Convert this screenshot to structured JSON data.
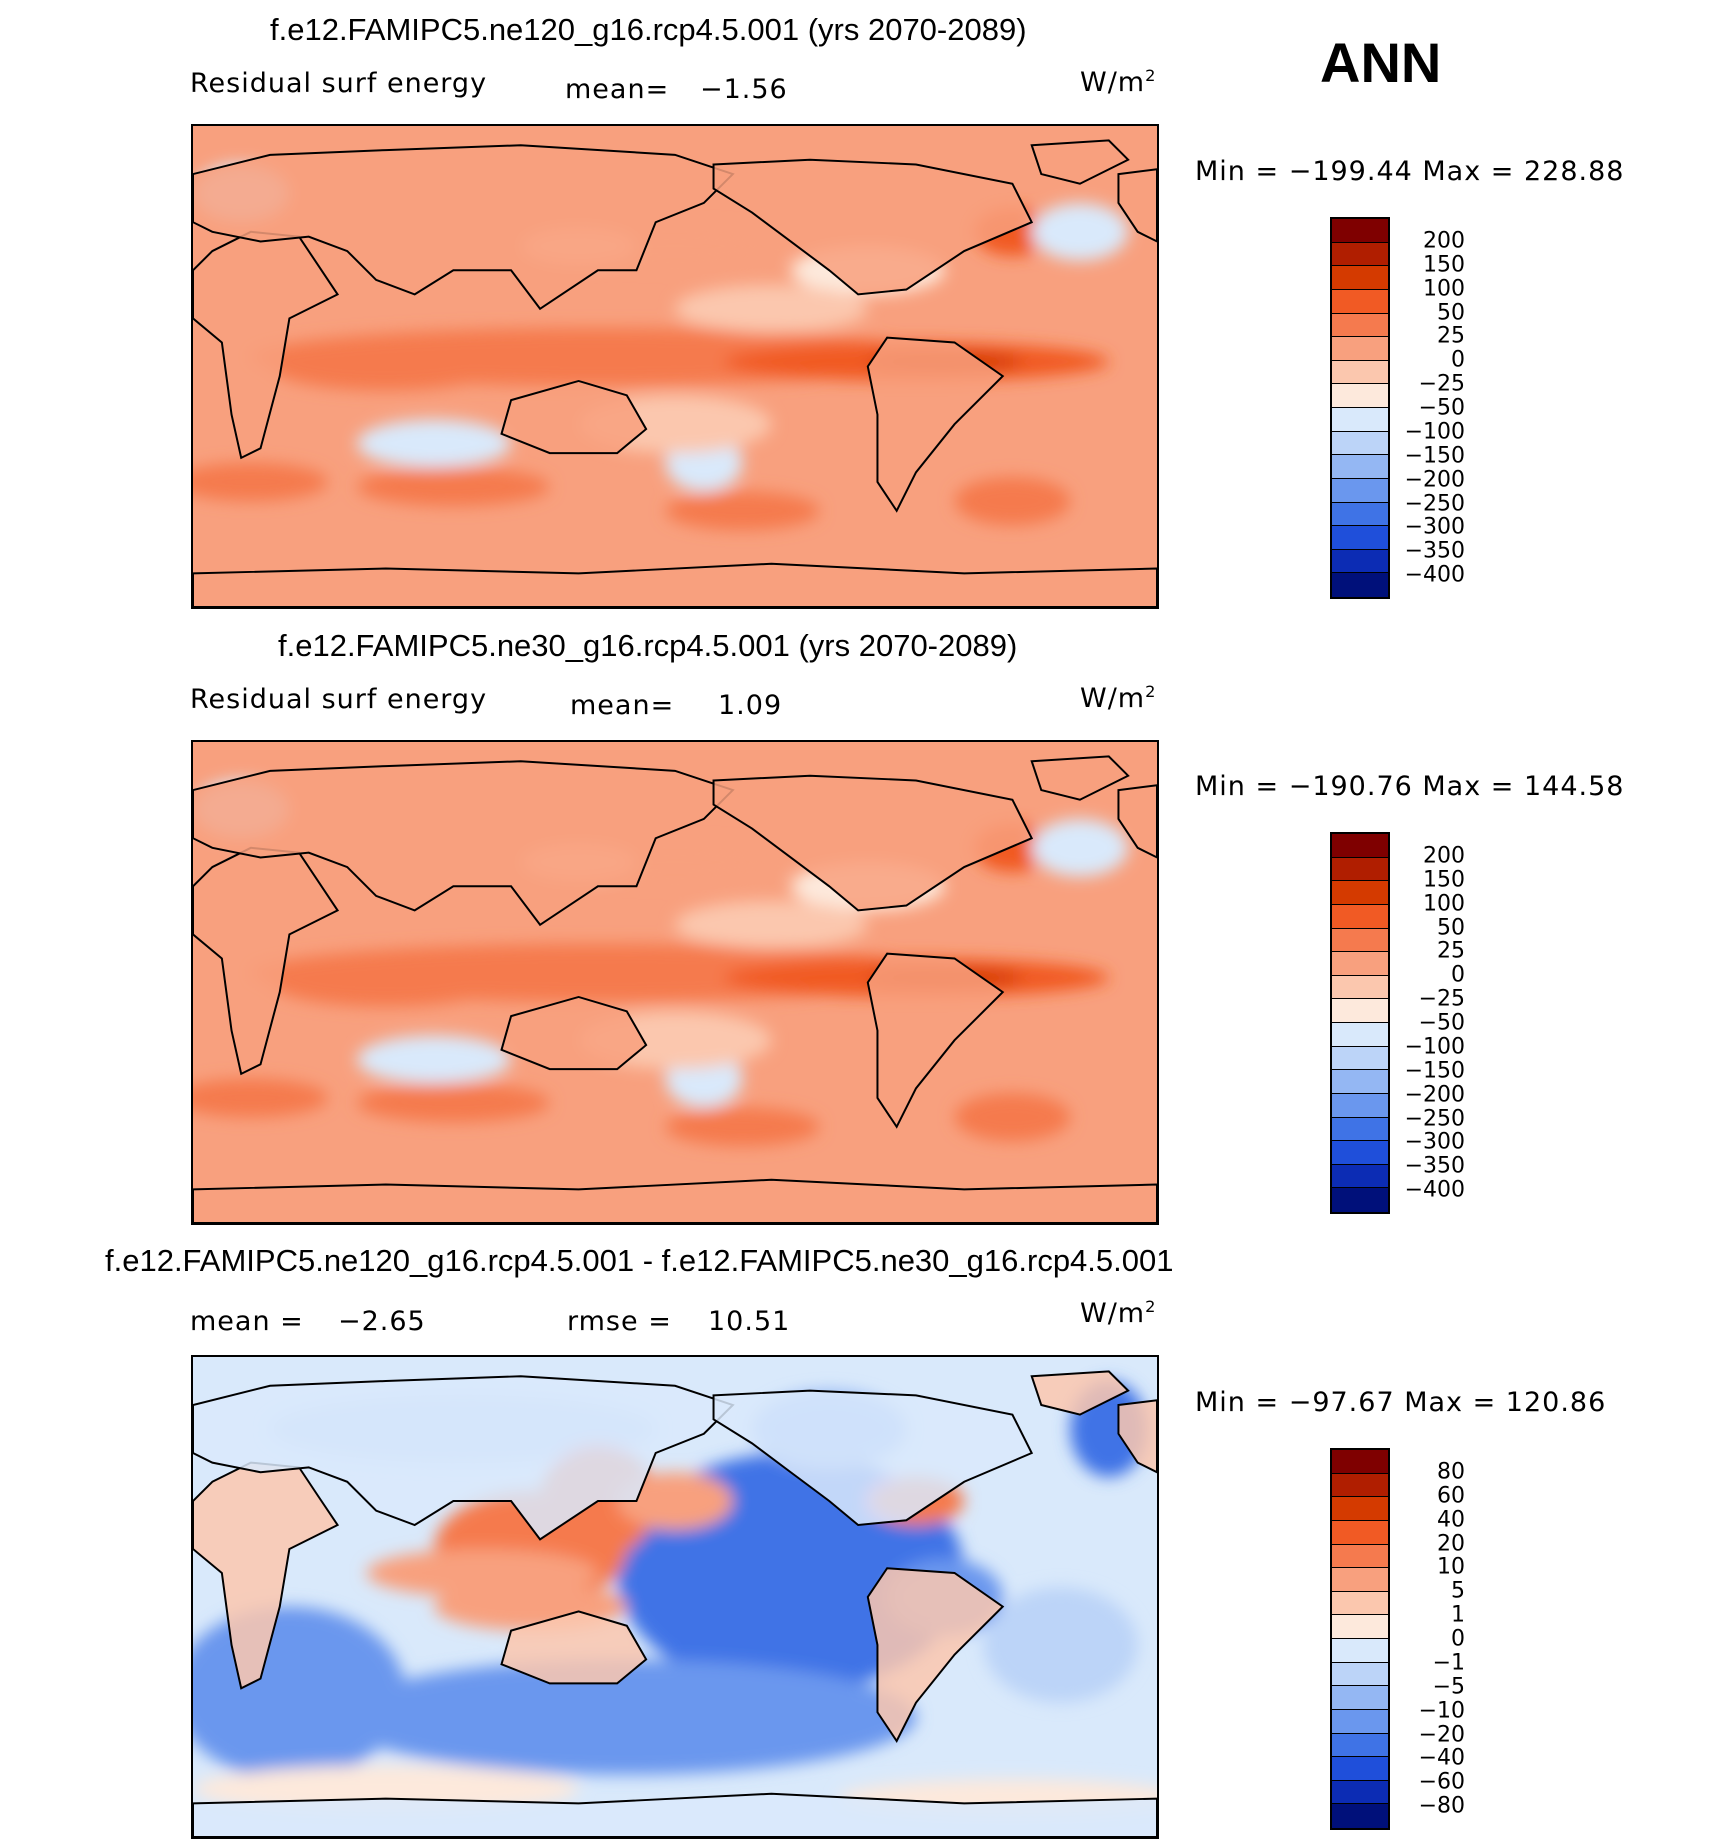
{
  "season": "ANN",
  "panels": [
    {
      "title": "f.e12.FAMIPC5.ne120_g16.rcp4.5.001 (yrs 2070-2089)",
      "left_label": "Residual surf energy",
      "stat_label": "mean=",
      "stat_value": "−1.56",
      "units_base": "W/m",
      "units_exp": "2",
      "minmax": "Min = −199.44 Max = 228.88",
      "field_type": "positive",
      "colorbar": {
        "levels": [
          "200",
          "150",
          "100",
          "50",
          "25",
          "0",
          "−25",
          "−50",
          "−100",
          "−150",
          "−200",
          "−250",
          "−300",
          "−350",
          "−400"
        ],
        "colors": [
          "#7f0000",
          "#b01e00",
          "#d43a00",
          "#f15a24",
          "#f57a4e",
          "#f8a07e",
          "#fbc7ae",
          "#fde9dc",
          "#d9e9fb",
          "#bcd4f8",
          "#94b7f3",
          "#6a97ee",
          "#3f73e6",
          "#1f4fda",
          "#0c2cb4",
          "#00107a"
        ]
      }
    },
    {
      "title": "f.e12.FAMIPC5.ne30_g16.rcp4.5.001 (yrs 2070-2089)",
      "left_label": "Residual surf energy",
      "stat_label": "mean=",
      "stat_value": "1.09",
      "units_base": "W/m",
      "units_exp": "2",
      "minmax": "Min = −190.76 Max = 144.58",
      "field_type": "positive",
      "colorbar": {
        "levels": [
          "200",
          "150",
          "100",
          "50",
          "25",
          "0",
          "−25",
          "−50",
          "−100",
          "−150",
          "−200",
          "−250",
          "−300",
          "−350",
          "−400"
        ],
        "colors": [
          "#7f0000",
          "#b01e00",
          "#d43a00",
          "#f15a24",
          "#f57a4e",
          "#f8a07e",
          "#fbc7ae",
          "#fde9dc",
          "#d9e9fb",
          "#bcd4f8",
          "#94b7f3",
          "#6a97ee",
          "#3f73e6",
          "#1f4fda",
          "#0c2cb4",
          "#00107a"
        ]
      }
    },
    {
      "title": "f.e12.FAMIPC5.ne120_g16.rcp4.5.001 - f.e12.FAMIPC5.ne30_g16.rcp4.5.001",
      "left_label": "mean =",
      "left_value": "−2.65",
      "stat_label": "rmse =",
      "stat_value": "10.51",
      "units_base": "W/m",
      "units_exp": "2",
      "minmax": "Min = −97.67 Max = 120.86",
      "field_type": "difference",
      "colorbar": {
        "levels": [
          "80",
          "60",
          "40",
          "20",
          "10",
          "5",
          "1",
          "0",
          "−1",
          "−5",
          "−10",
          "−20",
          "−40",
          "−60",
          "−80"
        ],
        "colors": [
          "#7f0000",
          "#b01e00",
          "#d43a00",
          "#f15a24",
          "#f57a4e",
          "#f8a07e",
          "#fbc7ae",
          "#fde9dc",
          "#d9e9fb",
          "#bcd4f8",
          "#94b7f3",
          "#6a97ee",
          "#3f73e6",
          "#1f4fda",
          "#0c2cb4",
          "#00107a"
        ]
      }
    }
  ]
}
